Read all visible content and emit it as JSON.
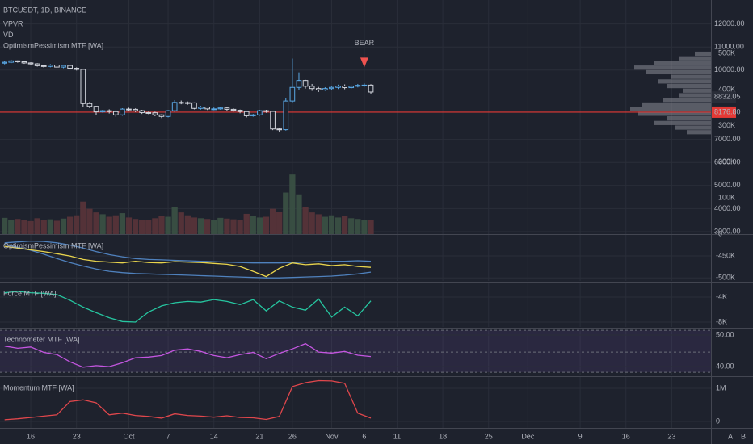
{
  "chart_data": [
    {
      "type": "candlestick",
      "title": "BTCUSDT, 1D, BINANCE",
      "legend": [
        "VPVR",
        "VD",
        "OptimismPessimism MTF [WA]"
      ],
      "x": [
        0,
        1,
        2,
        3,
        4,
        5,
        6,
        7,
        8,
        9,
        10,
        11,
        12,
        13,
        14,
        15,
        16,
        17,
        18,
        19,
        20,
        21,
        22,
        23,
        24,
        25,
        26,
        27,
        28,
        29,
        30,
        31,
        32,
        33,
        34,
        35,
        36,
        37,
        38,
        39,
        40,
        41,
        42,
        43,
        44,
        45,
        46,
        47,
        48,
        49,
        50,
        51,
        52,
        53,
        54,
        55,
        56
      ],
      "open": [
        10300,
        10340,
        10400,
        10360,
        10310,
        10270,
        10190,
        10160,
        10220,
        10130,
        10200,
        10080,
        10030,
        8550,
        8430,
        8190,
        8240,
        8200,
        8060,
        8310,
        8300,
        8240,
        8160,
        8150,
        8060,
        7990,
        8240,
        8600,
        8590,
        8580,
        8340,
        8400,
        8320,
        8320,
        8360,
        8300,
        8260,
        8200,
        8020,
        8060,
        8240,
        8210,
        7450,
        7420,
        8660,
        9250,
        9550,
        9300,
        9200,
        9140,
        9200,
        9250,
        9310,
        9240,
        9300,
        9340,
        9350
      ],
      "high": [
        10380,
        10450,
        10420,
        10400,
        10340,
        10300,
        10220,
        10260,
        10250,
        10230,
        10230,
        10120,
        10060,
        8620,
        8450,
        8280,
        8300,
        8250,
        8350,
        8370,
        8340,
        8280,
        8200,
        8200,
        8090,
        8270,
        8700,
        8680,
        8640,
        8600,
        8450,
        8420,
        8380,
        8400,
        8400,
        8340,
        8290,
        8230,
        8100,
        8280,
        8280,
        8240,
        7510,
        8800,
        10500,
        9900,
        9580,
        9400,
        9270,
        9260,
        9290,
        9370,
        9380,
        9340,
        9400,
        9420,
        9390
      ],
      "low": [
        10250,
        10300,
        10320,
        10270,
        10220,
        10150,
        10100,
        10120,
        10090,
        10080,
        10030,
        9980,
        8400,
        8350,
        8050,
        8150,
        8120,
        7980,
        8020,
        8220,
        8180,
        8100,
        8090,
        8000,
        7920,
        7950,
        8180,
        8520,
        8500,
        8300,
        8290,
        8270,
        8260,
        8280,
        8230,
        8200,
        8130,
        7950,
        7980,
        8020,
        8150,
        7400,
        7300,
        7380,
        8600,
        9150,
        9200,
        9100,
        9050,
        9100,
        9150,
        9180,
        9170,
        9200,
        9250,
        9280,
        8950
      ],
      "close": [
        10340,
        10400,
        10360,
        10310,
        10270,
        10190,
        10160,
        10220,
        10130,
        10200,
        10080,
        10030,
        8550,
        8430,
        8190,
        8240,
        8200,
        8060,
        8310,
        8300,
        8240,
        8160,
        8150,
        8060,
        7990,
        8240,
        8600,
        8590,
        8580,
        8340,
        8400,
        8320,
        8320,
        8360,
        8300,
        8260,
        8200,
        8020,
        8060,
        8240,
        8210,
        7450,
        7420,
        8660,
        9250,
        9550,
        9300,
        9200,
        9140,
        9200,
        9250,
        9310,
        9240,
        9300,
        9340,
        9350,
        9050
      ],
      "up_color": "#5aa9e6",
      "down_color": "#d1d4dc",
      "volume": {
        "axis": "y2",
        "up_color": "#3b5245",
        "down_color": "#5a343a",
        "values": [
          45000,
          38000,
          42000,
          40000,
          36000,
          44000,
          39000,
          41000,
          37000,
          43000,
          48000,
          52000,
          90000,
          70000,
          60000,
          55000,
          48000,
          52000,
          58000,
          46000,
          42000,
          40000,
          38000,
          44000,
          50000,
          48000,
          75000,
          60000,
          52000,
          46000,
          44000,
          42000,
          40000,
          45000,
          43000,
          41000,
          38000,
          56000,
          50000,
          46000,
          48000,
          70000,
          62000,
          115000,
          165000,
          110000,
          75000,
          60000,
          55000,
          48000,
          52000,
          46000,
          50000,
          44000,
          42000,
          40000,
          38000
        ]
      },
      "vpvr": {
        "bins": [
          7200,
          7400,
          7600,
          7800,
          8000,
          8200,
          8400,
          8600,
          8800,
          9000,
          9200,
          9400,
          9600,
          9800,
          10000,
          10200,
          10400,
          10600,
          10800
        ],
        "values": [
          30,
          45,
          70,
          55,
          90,
          100,
          85,
          60,
          40,
          35,
          55,
          65,
          50,
          80,
          95,
          70,
          40,
          20
        ],
        "xlim": [
          0,
          100
        ],
        "color": "#8a8d96"
      },
      "price_line": {
        "value": 8176.8,
        "label": "8176.80"
      },
      "last_price": 8832.05,
      "annotation": {
        "text": "BEAR",
        "x": 55,
        "color": "#ef5350"
      },
      "xlim": [
        -0.7,
        108
      ],
      "xticks": [
        {
          "value": 4,
          "label": "16"
        },
        {
          "value": 11,
          "label": "23"
        },
        {
          "value": 19,
          "label": "Oct"
        },
        {
          "value": 25,
          "label": "7"
        },
        {
          "value": 32,
          "label": "14"
        },
        {
          "value": 39,
          "label": "21"
        },
        {
          "value": 44,
          "label": "26"
        },
        {
          "value": 50,
          "label": "Nov"
        },
        {
          "value": 55,
          "label": "6"
        },
        {
          "value": 60,
          "label": "11"
        },
        {
          "value": 67,
          "label": "18"
        },
        {
          "value": 74,
          "label": "25"
        },
        {
          "value": 80,
          "label": "Dec"
        },
        {
          "value": 88,
          "label": "9"
        },
        {
          "value": 95,
          "label": "16"
        },
        {
          "value": 102,
          "label": "23"
        }
      ],
      "scale_labels": [
        "A",
        "B"
      ],
      "ylim": [
        2895,
        13035
      ],
      "yticks": [
        {
          "value": 12000,
          "label": "12000.00"
        },
        {
          "value": 11000,
          "label": "11000.00"
        },
        {
          "value": 10000,
          "label": "10000.00"
        },
        {
          "value": 7000,
          "label": "7000.00"
        },
        {
          "value": 6000,
          "label": "6000.00"
        },
        {
          "value": 5000,
          "label": "5000.00"
        },
        {
          "value": 4000,
          "label": "4000.00"
        },
        {
          "value": 3000,
          "label": "3000.00"
        }
      ],
      "y2lim": [
        0,
        648000
      ],
      "y2ticks": [
        {
          "value": 500000,
          "label": "500K"
        },
        {
          "value": 400000,
          "label": "400K"
        },
        {
          "value": 300000,
          "label": "300K"
        },
        {
          "value": 200000,
          "label": "200K"
        },
        {
          "value": 100000,
          "label": "100K"
        },
        0
      ],
      "grid": true
    },
    {
      "type": "line",
      "title": "OptimismPessimism MTF [WA]",
      "x": [
        0,
        2,
        4,
        6,
        8,
        10,
        12,
        14,
        16,
        18,
        20,
        22,
        24,
        26,
        28,
        30,
        32,
        34,
        36,
        38,
        40,
        42,
        44,
        46,
        48,
        50,
        52,
        54,
        56
      ],
      "series": [
        {
          "color": "#4f81bd",
          "values": [
            -420000,
            -418000,
            -416000,
            -417000,
            -420000,
            -425000,
            -432000,
            -440000,
            -447000,
            -452000,
            -456000,
            -458000,
            -459000,
            -460000,
            -461000,
            -462000,
            -463000,
            -464000,
            -465000,
            -466000,
            -466000,
            -466000,
            -465000,
            -464000,
            -463000,
            -462000,
            -462000,
            -461000,
            -462000
          ]
        },
        {
          "color": "#4f81bd",
          "values": [
            -424000,
            -430000,
            -437000,
            -446000,
            -456000,
            -465000,
            -473000,
            -480000,
            -485000,
            -488000,
            -490000,
            -491000,
            -492000,
            -493000,
            -494000,
            -495000,
            -496000,
            -497000,
            -498000,
            -499000,
            -500000,
            -500000,
            -499000,
            -498000,
            -497000,
            -496000,
            -494000,
            -491000,
            -487000
          ]
        },
        {
          "color": "#e8d44d",
          "values": [
            -428000,
            -432000,
            -436000,
            -440000,
            -445000,
            -450000,
            -458000,
            -462000,
            -464000,
            -466000,
            -462000,
            -465000,
            -466000,
            -463000,
            -464000,
            -465000,
            -467000,
            -469000,
            -474000,
            -485000,
            -497000,
            -478000,
            -466000,
            -470000,
            -468000,
            -472000,
            -470000,
            -474000,
            -476000
          ]
        }
      ],
      "ylim": [
        -507000,
        -402000
      ],
      "yticks": [
        {
          "value": -450000,
          "label": "-450K"
        },
        {
          "value": -500000,
          "label": "-500K"
        }
      ]
    },
    {
      "type": "line",
      "title": "Force MTF [WA]",
      "x": [
        0,
        2,
        4,
        6,
        8,
        10,
        12,
        14,
        16,
        18,
        20,
        22,
        24,
        26,
        28,
        30,
        32,
        34,
        36,
        38,
        40,
        42,
        44,
        46,
        48,
        50,
        52,
        54,
        56
      ],
      "series": [
        {
          "color": "#26c6a0",
          "values": [
            -3300,
            -3100,
            -3300,
            -3400,
            -3600,
            -4500,
            -5600,
            -6500,
            -7300,
            -7900,
            -8000,
            -6400,
            -5400,
            -4900,
            -4700,
            -4800,
            -4400,
            -4700,
            -5200,
            -4400,
            -6200,
            -4600,
            -5600,
            -6100,
            -4300,
            -7200,
            -5600,
            -7000,
            -4600
          ]
        }
      ],
      "ylim": [
        -8770,
        -1680
      ],
      "yticks": [
        {
          "value": -4000,
          "label": "-4K"
        },
        {
          "value": -8000,
          "label": "-8K"
        }
      ]
    },
    {
      "type": "line",
      "title": "Technometer MTF [WA]",
      "x": [
        0,
        2,
        4,
        6,
        8,
        10,
        12,
        14,
        16,
        18,
        20,
        22,
        24,
        26,
        28,
        30,
        32,
        34,
        36,
        38,
        40,
        42,
        44,
        46,
        48,
        50,
        52,
        54,
        56
      ],
      "series": [
        {
          "color": "#c456e0",
          "values": [
            46.5,
            45.8,
            46.2,
            44.5,
            43.8,
            41.5,
            39.8,
            40.3,
            40.0,
            41.2,
            42.8,
            43.0,
            43.5,
            45.2,
            45.6,
            44.8,
            43.5,
            42.8,
            43.8,
            44.5,
            42.5,
            44.2,
            45.6,
            47.3,
            44.6,
            44.3,
            44.8,
            43.6,
            43.2
          ]
        }
      ],
      "band": [
        38.2,
        51.5
      ],
      "band_color": "rgba(126,87,194,0.13)",
      "hlines": [
        51.5,
        44.6,
        38.2
      ],
      "ylim": [
        37.2,
        52.05
      ],
      "yticks": [
        {
          "value": 50,
          "label": "50.00"
        },
        {
          "value": 40,
          "label": "40.00"
        }
      ]
    },
    {
      "type": "line",
      "title": "Momentum MTF [WA]",
      "x": [
        0,
        2,
        4,
        6,
        8,
        10,
        12,
        14,
        16,
        18,
        20,
        22,
        24,
        26,
        28,
        30,
        32,
        34,
        36,
        38,
        40,
        42,
        44,
        46,
        48,
        50,
        52,
        54,
        56
      ],
      "series": [
        {
          "color": "#e0474c",
          "values": [
            50000,
            80000,
            120000,
            160000,
            200000,
            600000,
            650000,
            560000,
            200000,
            250000,
            180000,
            150000,
            100000,
            230000,
            180000,
            160000,
            130000,
            170000,
            120000,
            110000,
            60000,
            150000,
            1050000,
            1170000,
            1230000,
            1220000,
            1150000,
            250000,
            100000
          ]
        }
      ],
      "ylim": [
        -195000,
        1340000
      ],
      "yticks": [
        {
          "value": 1000000,
          "label": "1M"
        },
        0
      ]
    }
  ]
}
